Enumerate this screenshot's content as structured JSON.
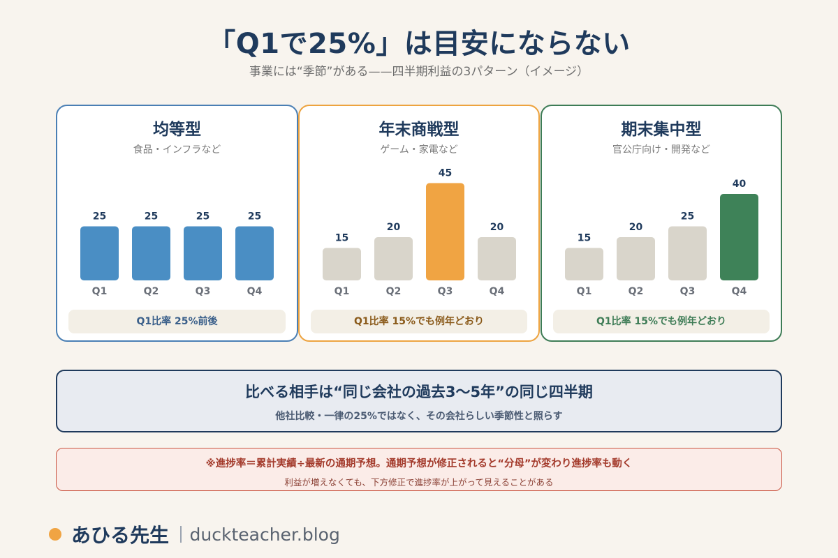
{
  "header": {
    "title": "「Q1で25%」は目安にならない",
    "subtitle": "事業には“季節”がある——四半期利益の3パターン（イメージ）"
  },
  "chart_data": [
    {
      "type": "bar",
      "title": "均等型",
      "subtitle": "食品・インフラなど",
      "categories": [
        "Q1",
        "Q2",
        "Q3",
        "Q4"
      ],
      "values": [
        25,
        25,
        25,
        25
      ],
      "ylim": [
        0,
        50
      ],
      "grid": false,
      "border_color": "#4a7fb4",
      "bar_colors": [
        "#4a8ec4",
        "#4a8ec4",
        "#4a8ec4",
        "#4a8ec4"
      ],
      "footer": "Q1比率 25%前後",
      "footer_color": "#3a5f8a"
    },
    {
      "type": "bar",
      "title": "年末商戦型",
      "subtitle": "ゲーム・家電など",
      "categories": [
        "Q1",
        "Q2",
        "Q3",
        "Q4"
      ],
      "values": [
        15,
        20,
        45,
        20
      ],
      "ylim": [
        0,
        50
      ],
      "grid": false,
      "border_color": "#eda33f",
      "bar_colors": [
        "#d9d5cb",
        "#d9d5cb",
        "#f0a443",
        "#d9d5cb"
      ],
      "footer": "Q1比率 15%でも例年どおり",
      "footer_color": "#8a5a1a"
    },
    {
      "type": "bar",
      "title": "期末集中型",
      "subtitle": "官公庁向け・開発など",
      "categories": [
        "Q1",
        "Q2",
        "Q3",
        "Q4"
      ],
      "values": [
        15,
        20,
        25,
        40
      ],
      "ylim": [
        0,
        50
      ],
      "grid": false,
      "border_color": "#3e7c56",
      "bar_colors": [
        "#d9d5cb",
        "#d9d5cb",
        "#d9d5cb",
        "#3e8258"
      ],
      "footer": "Q1比率 15%でも例年どおり",
      "footer_color": "#3e7c56"
    }
  ],
  "compare": {
    "main": "比べる相手は“同じ会社の過去3〜5年”の同じ四半期",
    "sub": "他社比較・一律の25%ではなく、その会社らしい季節性と照らす"
  },
  "note": {
    "main": "※進捗率＝累計実績÷最新の通期予想。通期予想が修正されると“分母”が変わり進捗率も動く",
    "sub": "利益が増えなくても、下方修正で進捗率が上がって見えることがある"
  },
  "brand": {
    "name": "あひる先生",
    "url": "duckteacher.blog"
  },
  "colors": {
    "background": "#f8f4ee",
    "navy": "#1f3a5c",
    "orange": "#f0a443",
    "green": "#3e8258",
    "blue": "#4a8ec4",
    "gray_bar": "#d9d5cb",
    "note_red": "#c9533f"
  }
}
